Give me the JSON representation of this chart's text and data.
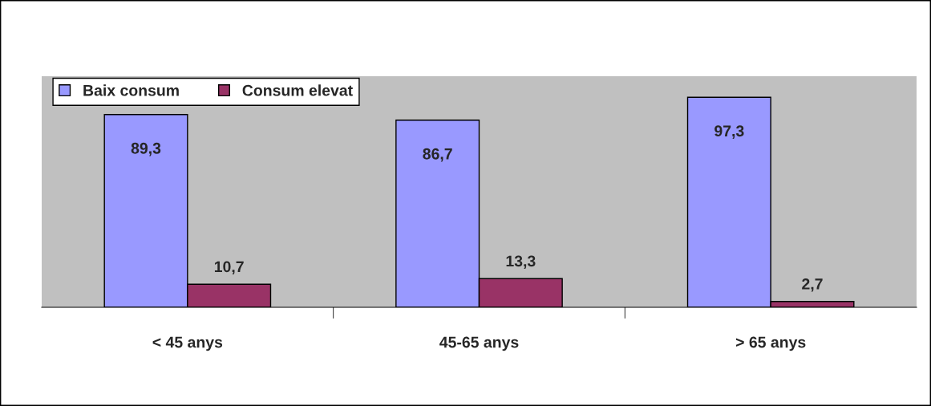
{
  "chart_data": {
    "type": "bar",
    "categories": [
      "< 45 anys",
      "45-65 anys",
      "> 65 anys"
    ],
    "series": [
      {
        "name": "Baix consum",
        "color": "#9999ff",
        "values": [
          89.3,
          86.7,
          97.3
        ],
        "value_labels": [
          "89,3",
          "86,7",
          "97,3"
        ]
      },
      {
        "name": "Consum elevat",
        "color": "#993366",
        "values": [
          10.7,
          13.3,
          2.7
        ],
        "value_labels": [
          "10,7",
          "13,3",
          "2,7"
        ]
      }
    ],
    "legend": "top left",
    "grid": false
  }
}
